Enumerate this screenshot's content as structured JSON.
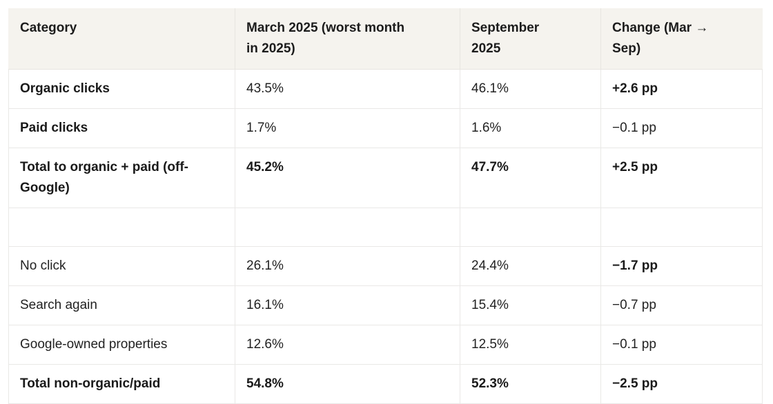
{
  "colors": {
    "page_background": "#ffffff",
    "header_background": "#f5f3ee",
    "cell_border": "#e9e8e6",
    "text": "#1f1f1f"
  },
  "table": {
    "columns": [
      {
        "label": "Category"
      },
      {
        "label": "March 2025 (worst month\nin 2025)"
      },
      {
        "label": "September\n2025"
      },
      {
        "label": "Change (Mar →\nSep)"
      }
    ],
    "rows": [
      {
        "spacer": false,
        "cells": [
          {
            "text": "Organic clicks",
            "bold": true
          },
          {
            "text": "43.5%",
            "bold": false
          },
          {
            "text": "46.1%",
            "bold": false
          },
          {
            "text": "+2.6 pp",
            "bold": true
          }
        ]
      },
      {
        "spacer": false,
        "cells": [
          {
            "text": "Paid clicks",
            "bold": true
          },
          {
            "text": "1.7%",
            "bold": false
          },
          {
            "text": "1.6%",
            "bold": false
          },
          {
            "text": "−0.1 pp",
            "bold": false
          }
        ]
      },
      {
        "spacer": false,
        "cells": [
          {
            "text": "Total to organic + paid (off-Google)",
            "bold": true
          },
          {
            "text": "45.2%",
            "bold": true
          },
          {
            "text": "47.7%",
            "bold": true
          },
          {
            "text": "+2.5 pp",
            "bold": true
          }
        ]
      },
      {
        "spacer": true,
        "cells": [
          {
            "text": "",
            "bold": false
          },
          {
            "text": "",
            "bold": false
          },
          {
            "text": "",
            "bold": false
          },
          {
            "text": "",
            "bold": false
          }
        ]
      },
      {
        "spacer": false,
        "cells": [
          {
            "text": "No click",
            "bold": false
          },
          {
            "text": "26.1%",
            "bold": false
          },
          {
            "text": "24.4%",
            "bold": false
          },
          {
            "text": "−1.7 pp",
            "bold": true
          }
        ]
      },
      {
        "spacer": false,
        "cells": [
          {
            "text": "Search again",
            "bold": false
          },
          {
            "text": "16.1%",
            "bold": false
          },
          {
            "text": "15.4%",
            "bold": false
          },
          {
            "text": "−0.7 pp",
            "bold": false
          }
        ]
      },
      {
        "spacer": false,
        "cells": [
          {
            "text": "Google-owned properties",
            "bold": false
          },
          {
            "text": "12.6%",
            "bold": false
          },
          {
            "text": "12.5%",
            "bold": false
          },
          {
            "text": "−0.1 pp",
            "bold": false
          }
        ]
      },
      {
        "spacer": false,
        "cells": [
          {
            "text": "Total non-organic/paid",
            "bold": true
          },
          {
            "text": "54.8%",
            "bold": true
          },
          {
            "text": "52.3%",
            "bold": true
          },
          {
            "text": "−2.5 pp",
            "bold": true
          }
        ]
      }
    ]
  },
  "chart_data": {
    "type": "table",
    "columns": [
      "Category",
      "March 2025 (worst month in 2025)",
      "September 2025",
      "Change (Mar → Sep)"
    ],
    "rows": [
      [
        "Organic clicks",
        "43.5%",
        "46.1%",
        "+2.6 pp"
      ],
      [
        "Paid clicks",
        "1.7%",
        "1.6%",
        "−0.1 pp"
      ],
      [
        "Total to organic + paid (off-Google)",
        "45.2%",
        "47.7%",
        "+2.5 pp"
      ],
      [
        "",
        "",
        "",
        ""
      ],
      [
        "No click",
        "26.1%",
        "24.4%",
        "−1.7 pp"
      ],
      [
        "Search again",
        "16.1%",
        "15.4%",
        "−0.7 pp"
      ],
      [
        "Google-owned properties",
        "12.6%",
        "12.5%",
        "−0.1 pp"
      ],
      [
        "Total non-organic/paid",
        "54.8%",
        "52.3%",
        "−2.5 pp"
      ]
    ]
  }
}
